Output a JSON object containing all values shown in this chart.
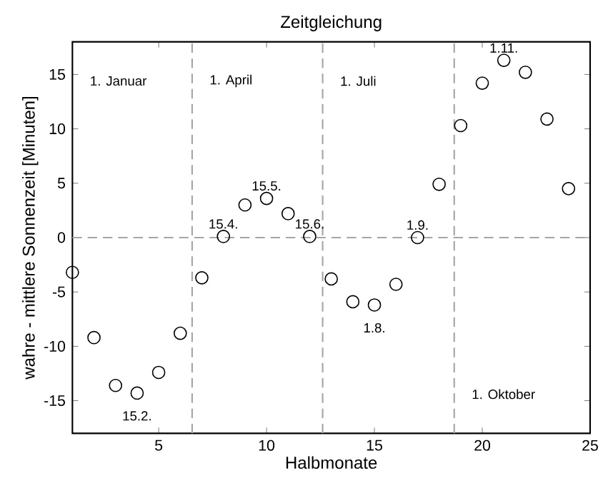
{
  "chart_data": {
    "type": "scatter",
    "title": "Zeitgleichung",
    "xlabel": "Halbmonate",
    "ylabel": "wahre - mittlere Sonnenzeit [Minuten]",
    "xlim": [
      1,
      25
    ],
    "ylim": [
      -18,
      18
    ],
    "xticks": [
      5,
      10,
      15,
      20,
      25
    ],
    "yticks": [
      -15,
      -10,
      -5,
      0,
      5,
      10,
      15
    ],
    "marker": "circle",
    "x": [
      1,
      2,
      3,
      4,
      5,
      6,
      7,
      8,
      9,
      10,
      11,
      12,
      13,
      14,
      15,
      16,
      17,
      18,
      19,
      20,
      21,
      22,
      23,
      24
    ],
    "series": [
      {
        "color": "#000000",
        "values": [
          -3.2,
          -9.2,
          -13.6,
          -14.3,
          -12.4,
          -8.8,
          -3.7,
          0.1,
          3.0,
          3.6,
          2.2,
          0.1,
          -3.8,
          -5.9,
          -6.2,
          -4.3,
          0.0,
          4.9,
          10.3,
          14.2,
          16.3,
          15.2,
          10.9,
          4.5
        ]
      }
    ],
    "ref_lines": [
      {
        "axis": "y",
        "value": 0,
        "color": "#a6a6a6",
        "line_style": "dashed"
      },
      {
        "axis": "x",
        "value": 6.55,
        "label": "1. April",
        "color": "#a6a6a6",
        "line_style": "dashed"
      },
      {
        "axis": "x",
        "value": 12.6,
        "label": "1. Juli",
        "color": "#a6a6a6",
        "line_style": "dashed"
      },
      {
        "axis": "x",
        "value": 18.7,
        "label": "1. Oktober",
        "color": "#a6a6a6",
        "line_style": "dashed"
      }
    ],
    "annotations": [
      "1. Januar",
      {
        "text": "15.2.",
        "x": 4,
        "y": -14.3
      },
      {
        "text": "15.4.",
        "x": 8,
        "y": 0.1
      },
      {
        "text": "15.5.",
        "x": 10,
        "y": 3.6
      },
      {
        "text": "15.6.",
        "x": 12,
        "y": 0.1
      },
      {
        "text": "1.8.",
        "x": 15,
        "y": -6.2
      },
      {
        "text": "1.9.",
        "x": 17,
        "y": 0.0
      },
      {
        "text": "1.11.",
        "x": 21,
        "y": 16.3
      }
    ]
  }
}
